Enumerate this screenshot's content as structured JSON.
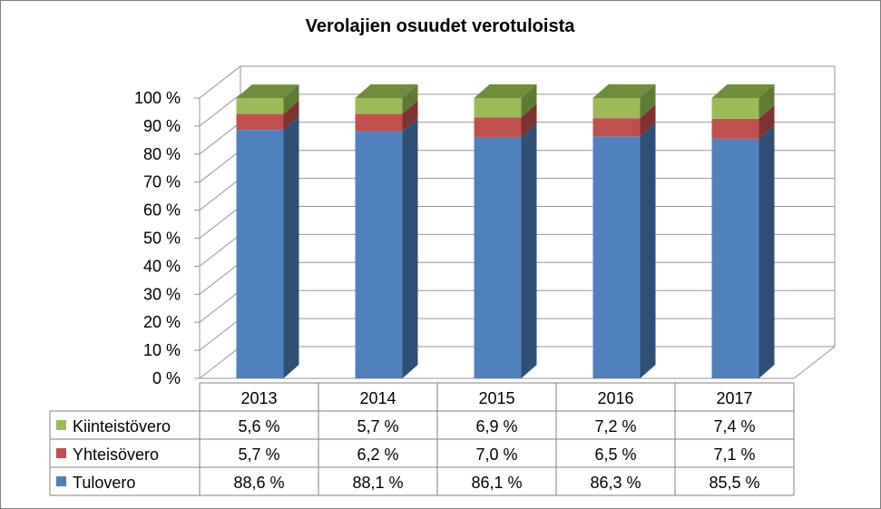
{
  "chart_data": {
    "type": "bar",
    "stacked": true,
    "three_d": true,
    "title": "Verolajien osuudet verotuloista",
    "categories": [
      "2013",
      "2014",
      "2015",
      "2016",
      "2017"
    ],
    "y_ticks": [
      "0 %",
      "10 %",
      "20 %",
      "30 %",
      "40 %",
      "50 %",
      "60 %",
      "70 %",
      "80 %",
      "90 %",
      "100 %"
    ],
    "ylim": [
      0,
      100
    ],
    "grid": true,
    "legend": "data-table",
    "series": [
      {
        "name": "Tulovero",
        "color": "#4f81bd",
        "side_color": "#2f4f77",
        "top_color": "#3a6395",
        "values": [
          88.6,
          88.1,
          86.1,
          86.3,
          85.5
        ],
        "labels": [
          "88,6 %",
          "88,1 %",
          "86,1 %",
          "86,3 %",
          "85,5 %"
        ]
      },
      {
        "name": "Yhteisövero",
        "color": "#c0504d",
        "side_color": "#7e3331",
        "top_color": "#9e403d",
        "values": [
          5.7,
          6.2,
          7.0,
          6.5,
          7.1
        ],
        "labels": [
          "5,7 %",
          "6,2 %",
          "7,0 %",
          "6,5 %",
          "7,1 %"
        ]
      },
      {
        "name": "Kiinteistövero",
        "color": "#9bbb59",
        "side_color": "#5f7a32",
        "top_color": "#6f8e3d",
        "values": [
          5.6,
          5.7,
          6.9,
          7.2,
          7.4
        ],
        "labels": [
          "5,6 %",
          "5,7 %",
          "6,9 %",
          "7,2 %",
          "7,4 %"
        ]
      }
    ]
  }
}
